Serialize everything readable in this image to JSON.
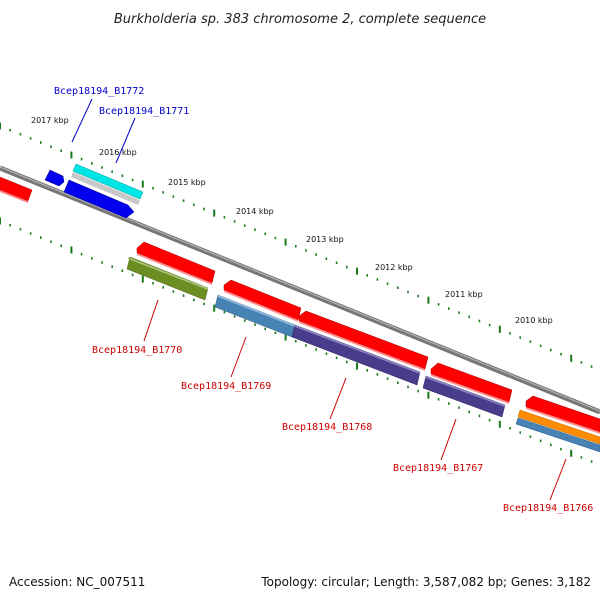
{
  "title": "Burkholderia sp. 383 chromosome 2, complete sequence",
  "footer": {
    "accession": "Accession: NC_007511",
    "summary": "Topology: circular; Length: 3,587,082 bp; Genes: 3,182"
  },
  "scale": {
    "ticks": [
      "2017 kbp",
      "2016 kbp",
      "2015 kbp",
      "2014 kbp",
      "2013 kbp",
      "2012 kbp",
      "2011 kbp",
      "2010 kbp"
    ]
  },
  "genes": {
    "forward": [
      {
        "label": "Bcep18194_B1772",
        "color": "#0000cc"
      },
      {
        "label": "Bcep18194_B1771",
        "color": "#0000cc"
      }
    ],
    "reverse": [
      {
        "label": "Bcep18194_B1770",
        "color": "#cc0000"
      },
      {
        "label": "Bcep18194_B1769",
        "color": "#cc0000"
      },
      {
        "label": "Bcep18194_B1768",
        "color": "#cc0000"
      },
      {
        "label": "Bcep18194_B1767",
        "color": "#cc0000"
      },
      {
        "label": "Bcep18194_B1766",
        "color": "#cc0000"
      }
    ]
  },
  "colors": {
    "backbone": "#808080",
    "cds": "#ff0000",
    "forward_gene": "#0000ee",
    "forward_cyan": "#00e5e5",
    "olive": "#6b8e23",
    "steelblue": "#4682b4",
    "darkslate": "#483d8b",
    "orange": "#ff8c00",
    "tick": "#1a7a1a"
  }
}
